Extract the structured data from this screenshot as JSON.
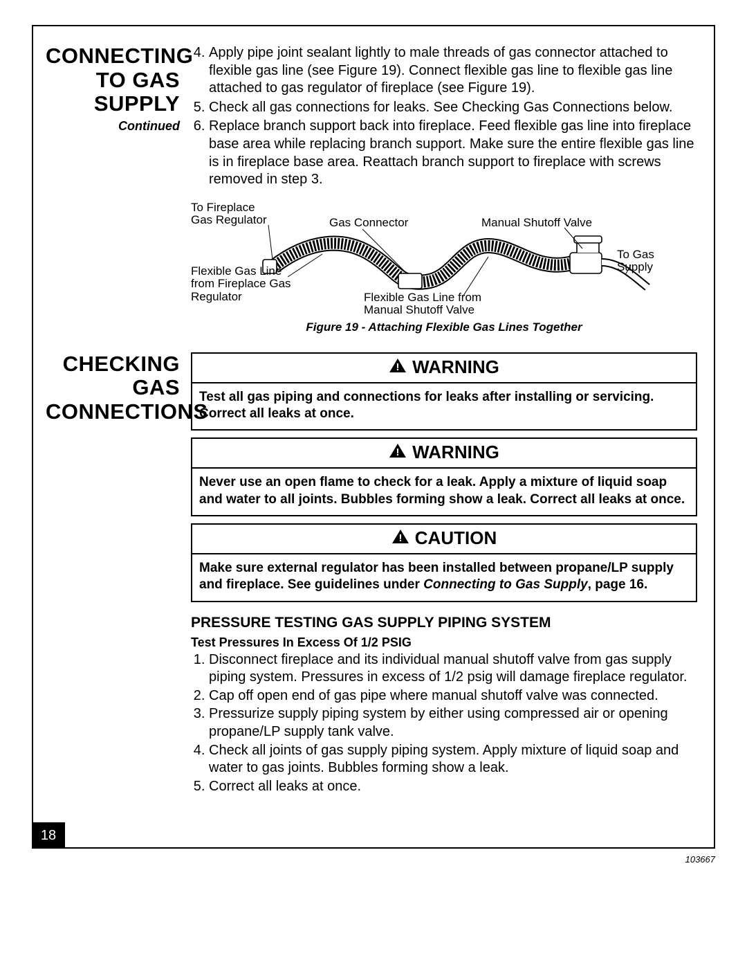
{
  "section1": {
    "title": "CONNECTING TO GAS SUPPLY",
    "continued": "Continued",
    "steps_start": 4,
    "steps": [
      "Apply pipe joint sealant lightly to male threads of gas connector attached to flexible gas line (see Figure 19). Connect flexible gas line to flexible gas line attached to gas regulator of fireplace (see Figure 19).",
      "Check all gas connections for leaks. See Checking Gas Connections below.",
      "Replace branch support back into fireplace. Feed flexible gas line into fireplace base area while replacing branch support. Make sure the entire flexible gas line is in fireplace base area. Reattach branch support to fireplace with screws removed in step 3."
    ]
  },
  "figure": {
    "labels": {
      "to_regulator": "To Fireplace\nGas Regulator",
      "gas_connector": "Gas Connector",
      "manual_shutoff": "Manual Shutoff Valve",
      "flex_from_reg": "Flexible Gas Line\nfrom Fireplace Gas\nRegulator",
      "flex_from_valve": "Flexible Gas Line from\nManual Shutoff Valve",
      "to_supply": "To Gas\nSupply"
    },
    "caption": "Figure 19 - Attaching Flexible Gas Lines Together",
    "stroke": "#000000",
    "fill": "#ffffff"
  },
  "section2": {
    "title": "CHECKING GAS CONNECTIONS",
    "warning_label": "WARNING",
    "caution_label": "CAUTION",
    "warn1": "Test all gas piping and connections for leaks after installing or servicing. Correct all leaks at once.",
    "warn2": "Never use an open flame to check for a leak. Apply a mixture of liquid soap and water to all joints. Bubbles forming show a leak. Correct all leaks at once.",
    "caution_pre": "Make sure external regulator has been installed between propane/LP supply and fireplace. See guidelines under ",
    "caution_ital": "Connecting to Gas Supply",
    "caution_post": ", page 16.",
    "pressure_hdr": "PRESSURE TESTING GAS SUPPLY PIPING SYSTEM",
    "pressure_sub": "Test Pressures In Excess Of 1/2 PSIG",
    "pressure_steps": [
      "Disconnect fireplace and its individual manual shutoff valve from gas supply piping system. Pressures in excess of 1/2 psig will damage fireplace regulator.",
      "Cap off open end of gas pipe where manual shutoff valve was connected.",
      "Pressurize supply piping system by either using compressed air or opening propane/LP supply tank valve.",
      "Check all joints of gas supply piping system. Apply mixture of liquid soap and water to gas joints. Bubbles forming show a leak.",
      "Correct all leaks at once."
    ]
  },
  "page_number": "18",
  "doc_id": "103667"
}
